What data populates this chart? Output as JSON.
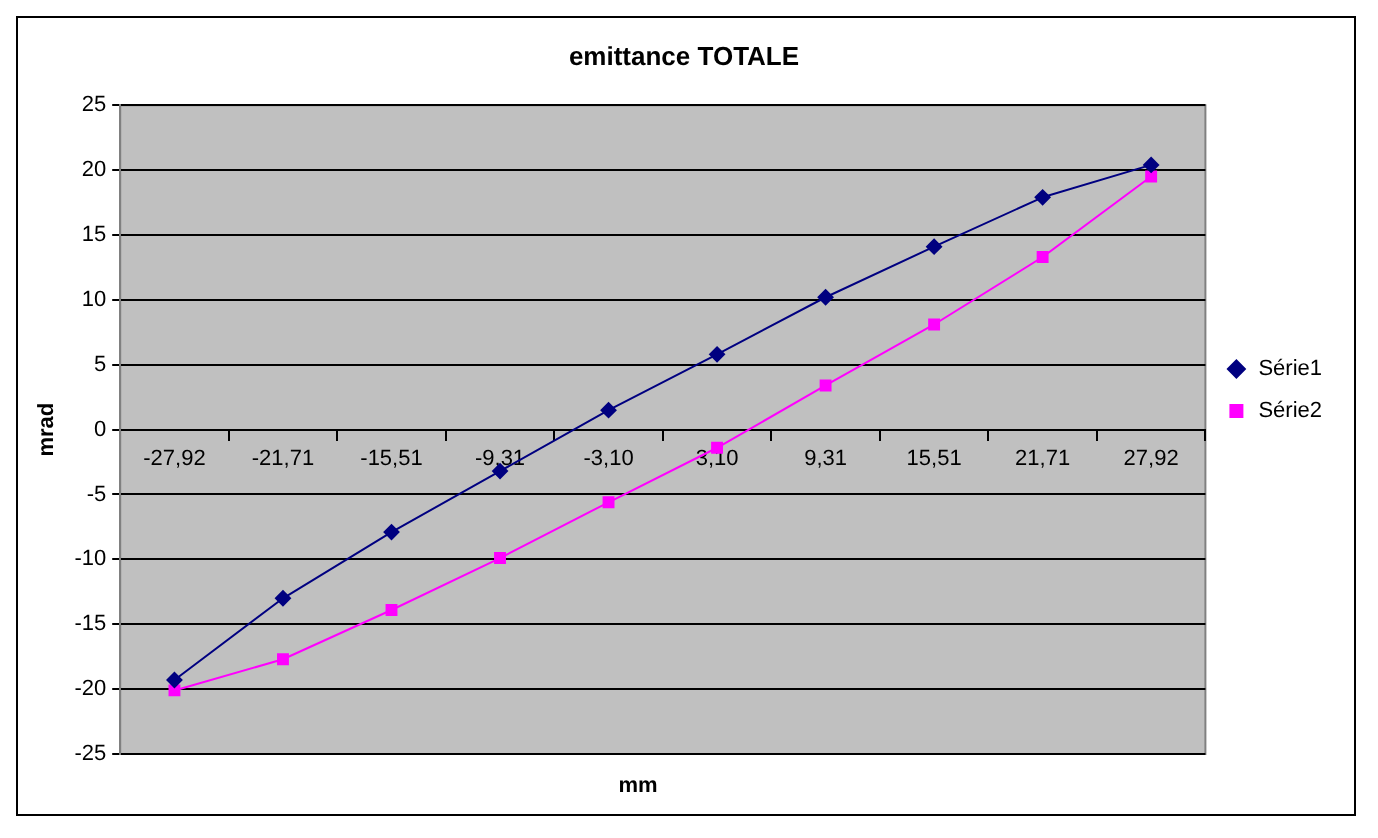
{
  "chart_data": {
    "type": "line",
    "title": "emittance TOTALE",
    "xlabel": "mm",
    "ylabel": "mrad",
    "categories": [
      "-27,92",
      "-21,71",
      "-15,51",
      "-9,31",
      "-3,10",
      "3,10",
      "9,31",
      "15,51",
      "21,71",
      "27,92"
    ],
    "series": [
      {
        "name": "Série1",
        "color": "#000080",
        "marker": "diamond",
        "values": [
          -19.3,
          -13.0,
          -7.9,
          -3.2,
          1.5,
          5.8,
          10.2,
          14.1,
          17.9,
          20.4
        ]
      },
      {
        "name": "Série2",
        "color": "#ff00ff",
        "marker": "square",
        "values": [
          -20.1,
          -17.7,
          -13.9,
          -9.9,
          -5.6,
          -1.4,
          3.4,
          8.1,
          13.3,
          19.5
        ]
      }
    ],
    "ylim": [
      -25,
      25
    ],
    "yticks": [
      -25,
      -20,
      -15,
      -10,
      -5,
      0,
      5,
      10,
      15,
      20,
      25
    ],
    "grid": "y",
    "legend": "right",
    "line_style": "solid"
  }
}
